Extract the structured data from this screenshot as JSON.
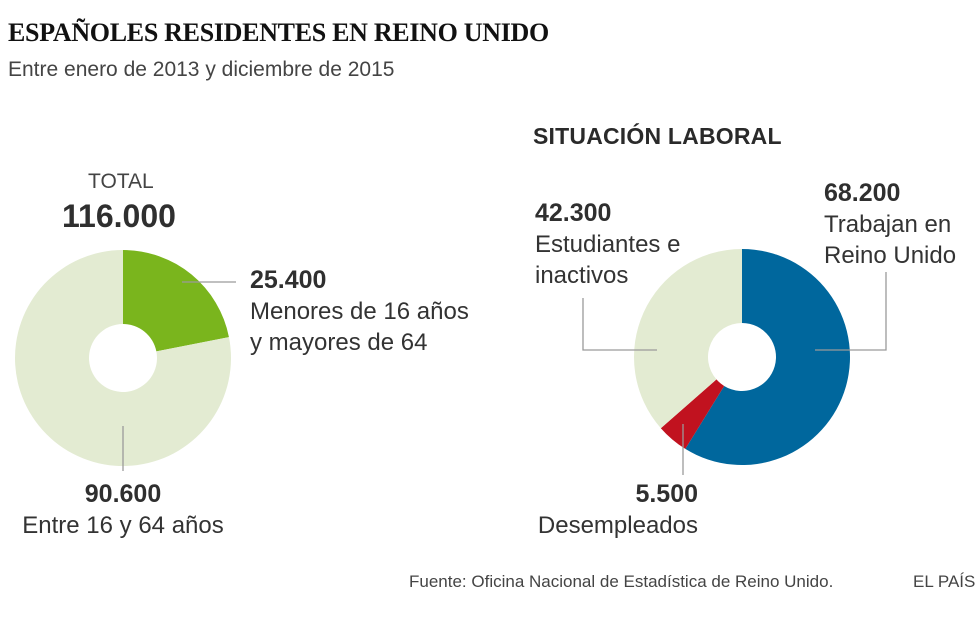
{
  "header": {
    "title": "ESPAÑOLES RESIDENTES EN REINO UNIDO",
    "subtitle": "Entre enero de 2013 y diciembre de 2015"
  },
  "chart_data": [
    {
      "type": "pie",
      "variant": "donut",
      "title": "TOTAL",
      "total_caption": "TOTAL",
      "total_value": "116.000",
      "slices": [
        {
          "value": 25400,
          "value_label": "25.400",
          "label_line1": "Menores de 16 años",
          "label_line2": "y mayores de 64",
          "color": "#7ab51d"
        },
        {
          "value": 90600,
          "value_label": "90.600",
          "label_line1": "Entre 16 y 64 años",
          "color": "#e3ebd2"
        }
      ]
    },
    {
      "type": "pie",
      "variant": "donut",
      "title": "SITUACIÓN LABORAL",
      "slices": [
        {
          "value": 68200,
          "value_label": "68.200",
          "label_line1": "Trabajan en",
          "label_line2": "Reino Unido",
          "color": "#00679d"
        },
        {
          "value": 5500,
          "value_label": "5.500",
          "label_line1": "Desempleados",
          "color": "#c1121f"
        },
        {
          "value": 42300,
          "value_label": "42.300",
          "label_line1": "Estudiantes e",
          "label_line2": "inactivos",
          "color": "#e3ebd2"
        }
      ]
    }
  ],
  "footer": {
    "source": "Fuente: Oficina Nacional de Estadística de Reino Unido.",
    "brand": "EL PAÍS"
  }
}
